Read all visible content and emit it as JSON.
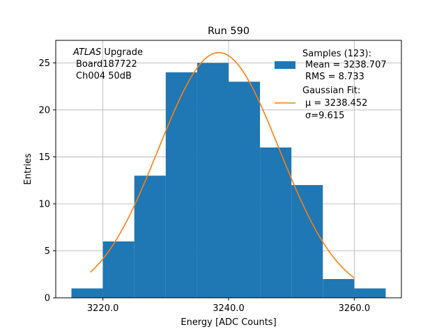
{
  "chart_data": {
    "type": "bar",
    "title": "Run 590",
    "xlabel": "Energy [ADC Counts]",
    "ylabel": "Entries",
    "xlim": [
      3212.5,
      3267.5
    ],
    "ylim": [
      0,
      27.4
    ],
    "grid": true,
    "x_ticks": [
      3220.0,
      3240.0,
      3260.0
    ],
    "x_tick_labels": [
      "3220.0",
      "3240.0",
      "3260.0"
    ],
    "y_ticks": [
      0,
      5,
      10,
      15,
      20,
      25
    ],
    "y_tick_labels": [
      "0",
      "5",
      "10",
      "15",
      "20",
      "25"
    ],
    "bin_width": 5,
    "bins": [
      {
        "left": 3215,
        "count": 1
      },
      {
        "left": 3220,
        "count": 6
      },
      {
        "left": 3225,
        "count": 13
      },
      {
        "left": 3230,
        "count": 24
      },
      {
        "left": 3235,
        "count": 25
      },
      {
        "left": 3240,
        "count": 23
      },
      {
        "left": 3245,
        "count": 16
      },
      {
        "left": 3250,
        "count": 12
      },
      {
        "left": 3255,
        "count": 2
      },
      {
        "left": 3260,
        "count": 1
      }
    ],
    "fit": {
      "mu": 3238.452,
      "sigma": 9.615,
      "amplitude": 26.1,
      "x_range": [
        3218,
        3260
      ]
    },
    "colors": {
      "histogram": "#1f77b4",
      "fit": "#ff7f0e",
      "grid": "#b0b0b0"
    },
    "annotation": {
      "atlas": "ATLAS",
      "upgrade": " Upgrade",
      "line2": "Board187722",
      "line3": "Ch004 50dB"
    },
    "legend": {
      "placement": "upper right",
      "samples_lines": [
        "Samples (123):",
        "Mean = 3238.707",
        "RMS = 8.733"
      ],
      "fit_lines": [
        "Gaussian Fit:",
        "μ = 3238.452",
        "σ=9.615"
      ]
    }
  }
}
